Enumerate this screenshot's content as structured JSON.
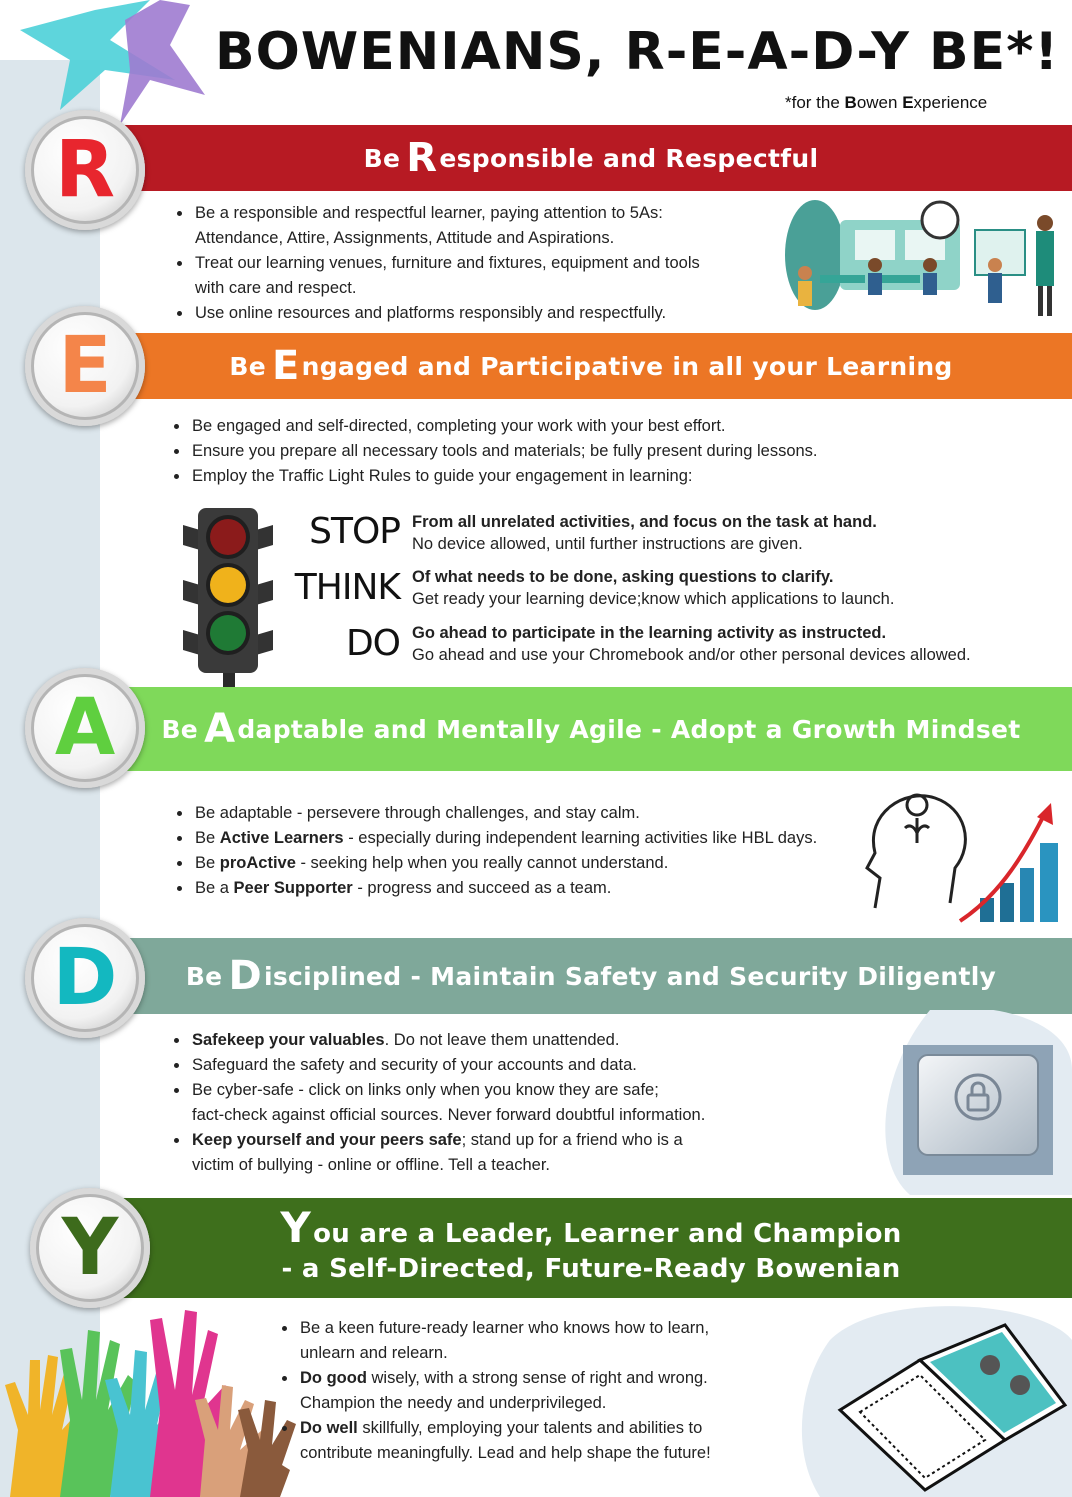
{
  "header": {
    "title": "BOWENIANS, R-E-A-D-Y BE*!",
    "subtitle_prefix": "*for the ",
    "subtitle_b1": "B",
    "subtitle_mid1": "owen ",
    "subtitle_b2": "E",
    "subtitle_end": "xperience"
  },
  "sections": {
    "r": {
      "letter": "R",
      "letter_color": "#e8262e",
      "band_pre": "Be",
      "band_big": "R",
      "band_rest": "esponsible and Respectful",
      "items": [
        {
          "line1": "Be a responsible and respectful learner, paying attention to 5As:",
          "line2": "Attendance, Attire, Assignments, Attitude and Aspirations."
        },
        {
          "line1": "Treat our learning venues, furniture and fixtures, equipment and tools",
          "line2": "with care and respect."
        },
        {
          "line1": "Use online resources and platforms responsibly and respectfully."
        }
      ]
    },
    "e": {
      "letter": "E",
      "letter_color": "#f4854a",
      "band_pre": "Be",
      "band_big": "E",
      "band_rest": "ngaged and Participative in all your Learning",
      "items": [
        "Be engaged and self-directed, completing your work with your best effort.",
        "Ensure you prepare all necessary tools and materials; be fully present during lessons.",
        "Employ the Traffic Light Rules to guide your engagement in learning:"
      ],
      "traffic": [
        {
          "word": "STOP",
          "bold": "From all unrelated activities, and focus on the task at hand.",
          "text": "No device allowed, until further instructions are given."
        },
        {
          "word": "THINK",
          "bold": "Of what needs to be done, asking questions to clarify.",
          "text": "Get ready your learning device;know which applications to launch."
        },
        {
          "word": "DO",
          "bold": "Go ahead to participate in the learning activity as instructed.",
          "text": "Go ahead and use your Chromebook and/or other personal devices allowed."
        }
      ]
    },
    "a": {
      "letter": "A",
      "letter_color": "#5fcf3f",
      "band_pre": "Be",
      "band_big": "A",
      "band_rest": "daptable and Mentally Agile - Adopt a Growth Mindset",
      "items": [
        {
          "pre": "Be adaptable - persevere through challenges, and stay calm.",
          "bold": "",
          "post": ""
        },
        {
          "pre": "Be ",
          "bold": "Active Learners",
          "post": " - especially during independent learning activities like HBL days."
        },
        {
          "pre": "Be ",
          "bold": "proActive",
          "post": " - seeking help when you really cannot understand."
        },
        {
          "pre": "Be a ",
          "bold": "Peer Supporter",
          "post": " - progress and succeed as a team."
        }
      ]
    },
    "d": {
      "letter": "D",
      "letter_color": "#13b8c0",
      "band_pre": "Be",
      "band_big": "D",
      "band_rest": "isciplined - Maintain Safety and Security Diligently",
      "items": [
        {
          "bold": "Safekeep your valuables",
          "post": ". Do not leave them unattended.",
          "line2": ""
        },
        {
          "bold": "",
          "post": "Safeguard the safety and security of your accounts and data.",
          "line2": ""
        },
        {
          "bold": "",
          "post": "Be cyber-safe - click on links only when you know they are safe;",
          "line2": "fact-check against official sources. Never forward doubtful information."
        },
        {
          "bold": "Keep yourself and your peers safe",
          "post": "; stand up for a friend who is a",
          "line2": "victim of bullying - online or offline. Tell a teacher."
        }
      ]
    },
    "y": {
      "letter": "Y",
      "letter_color": "#3d6b1c",
      "band_big": "Y",
      "band_line1_rest": "ou are a Leader, Learner and Champion",
      "band_line2": "- a Self-Directed, Future-Ready Bowenian",
      "items": [
        {
          "bold": "",
          "post": "Be a keen future-ready learner who knows how to learn,",
          "line2": "unlearn and relearn."
        },
        {
          "bold": "Do good",
          "post": " wisely, with a strong sense of right and wrong.",
          "line2": "Champion the needy and underprivileged."
        },
        {
          "bold": "Do well",
          "post": " skillfully, employing your talents and abilities to",
          "line2": "contribute meaningfully. Lead and help shape the future!"
        }
      ]
    }
  },
  "colors": {
    "band_r": "#b71a23",
    "band_e": "#ec7625",
    "band_a": "#7fd95a",
    "band_d": "#7fa89a",
    "band_y": "#3e6f1c"
  }
}
